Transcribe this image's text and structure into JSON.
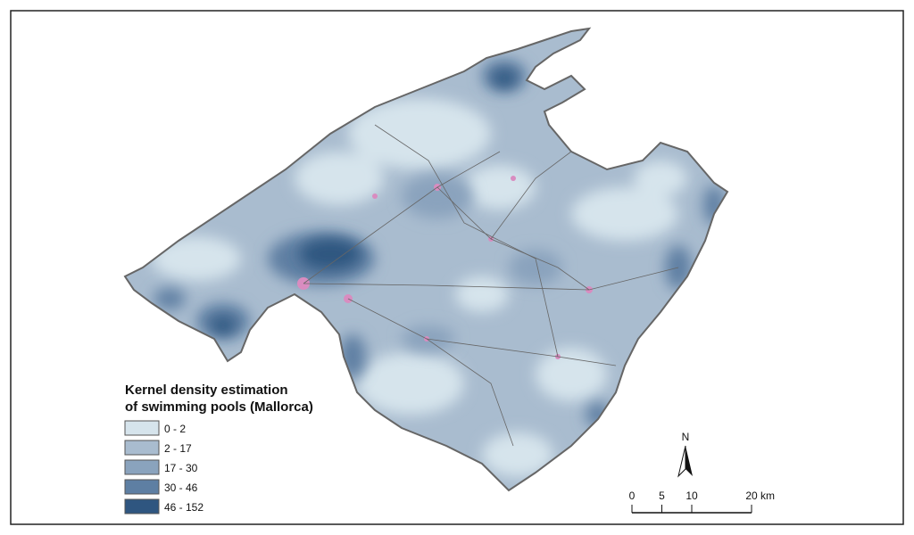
{
  "legend": {
    "title": [
      "Kernel density estimation",
      "of swimming pools (Mallorca)"
    ],
    "items": [
      {
        "label": "0 - 2",
        "color": "#d6e4ec"
      },
      {
        "label": "2 - 17",
        "color": "#a9bccf"
      },
      {
        "label": "17 - 30",
        "color": "#8aa3bd"
      },
      {
        "label": "30 - 46",
        "color": "#5e7fa3"
      },
      {
        "label": "46 - 152",
        "color": "#2f5680"
      }
    ]
  },
  "north": "N",
  "scale": {
    "ticks": [
      0,
      5,
      10,
      20
    ],
    "unit": "km"
  }
}
